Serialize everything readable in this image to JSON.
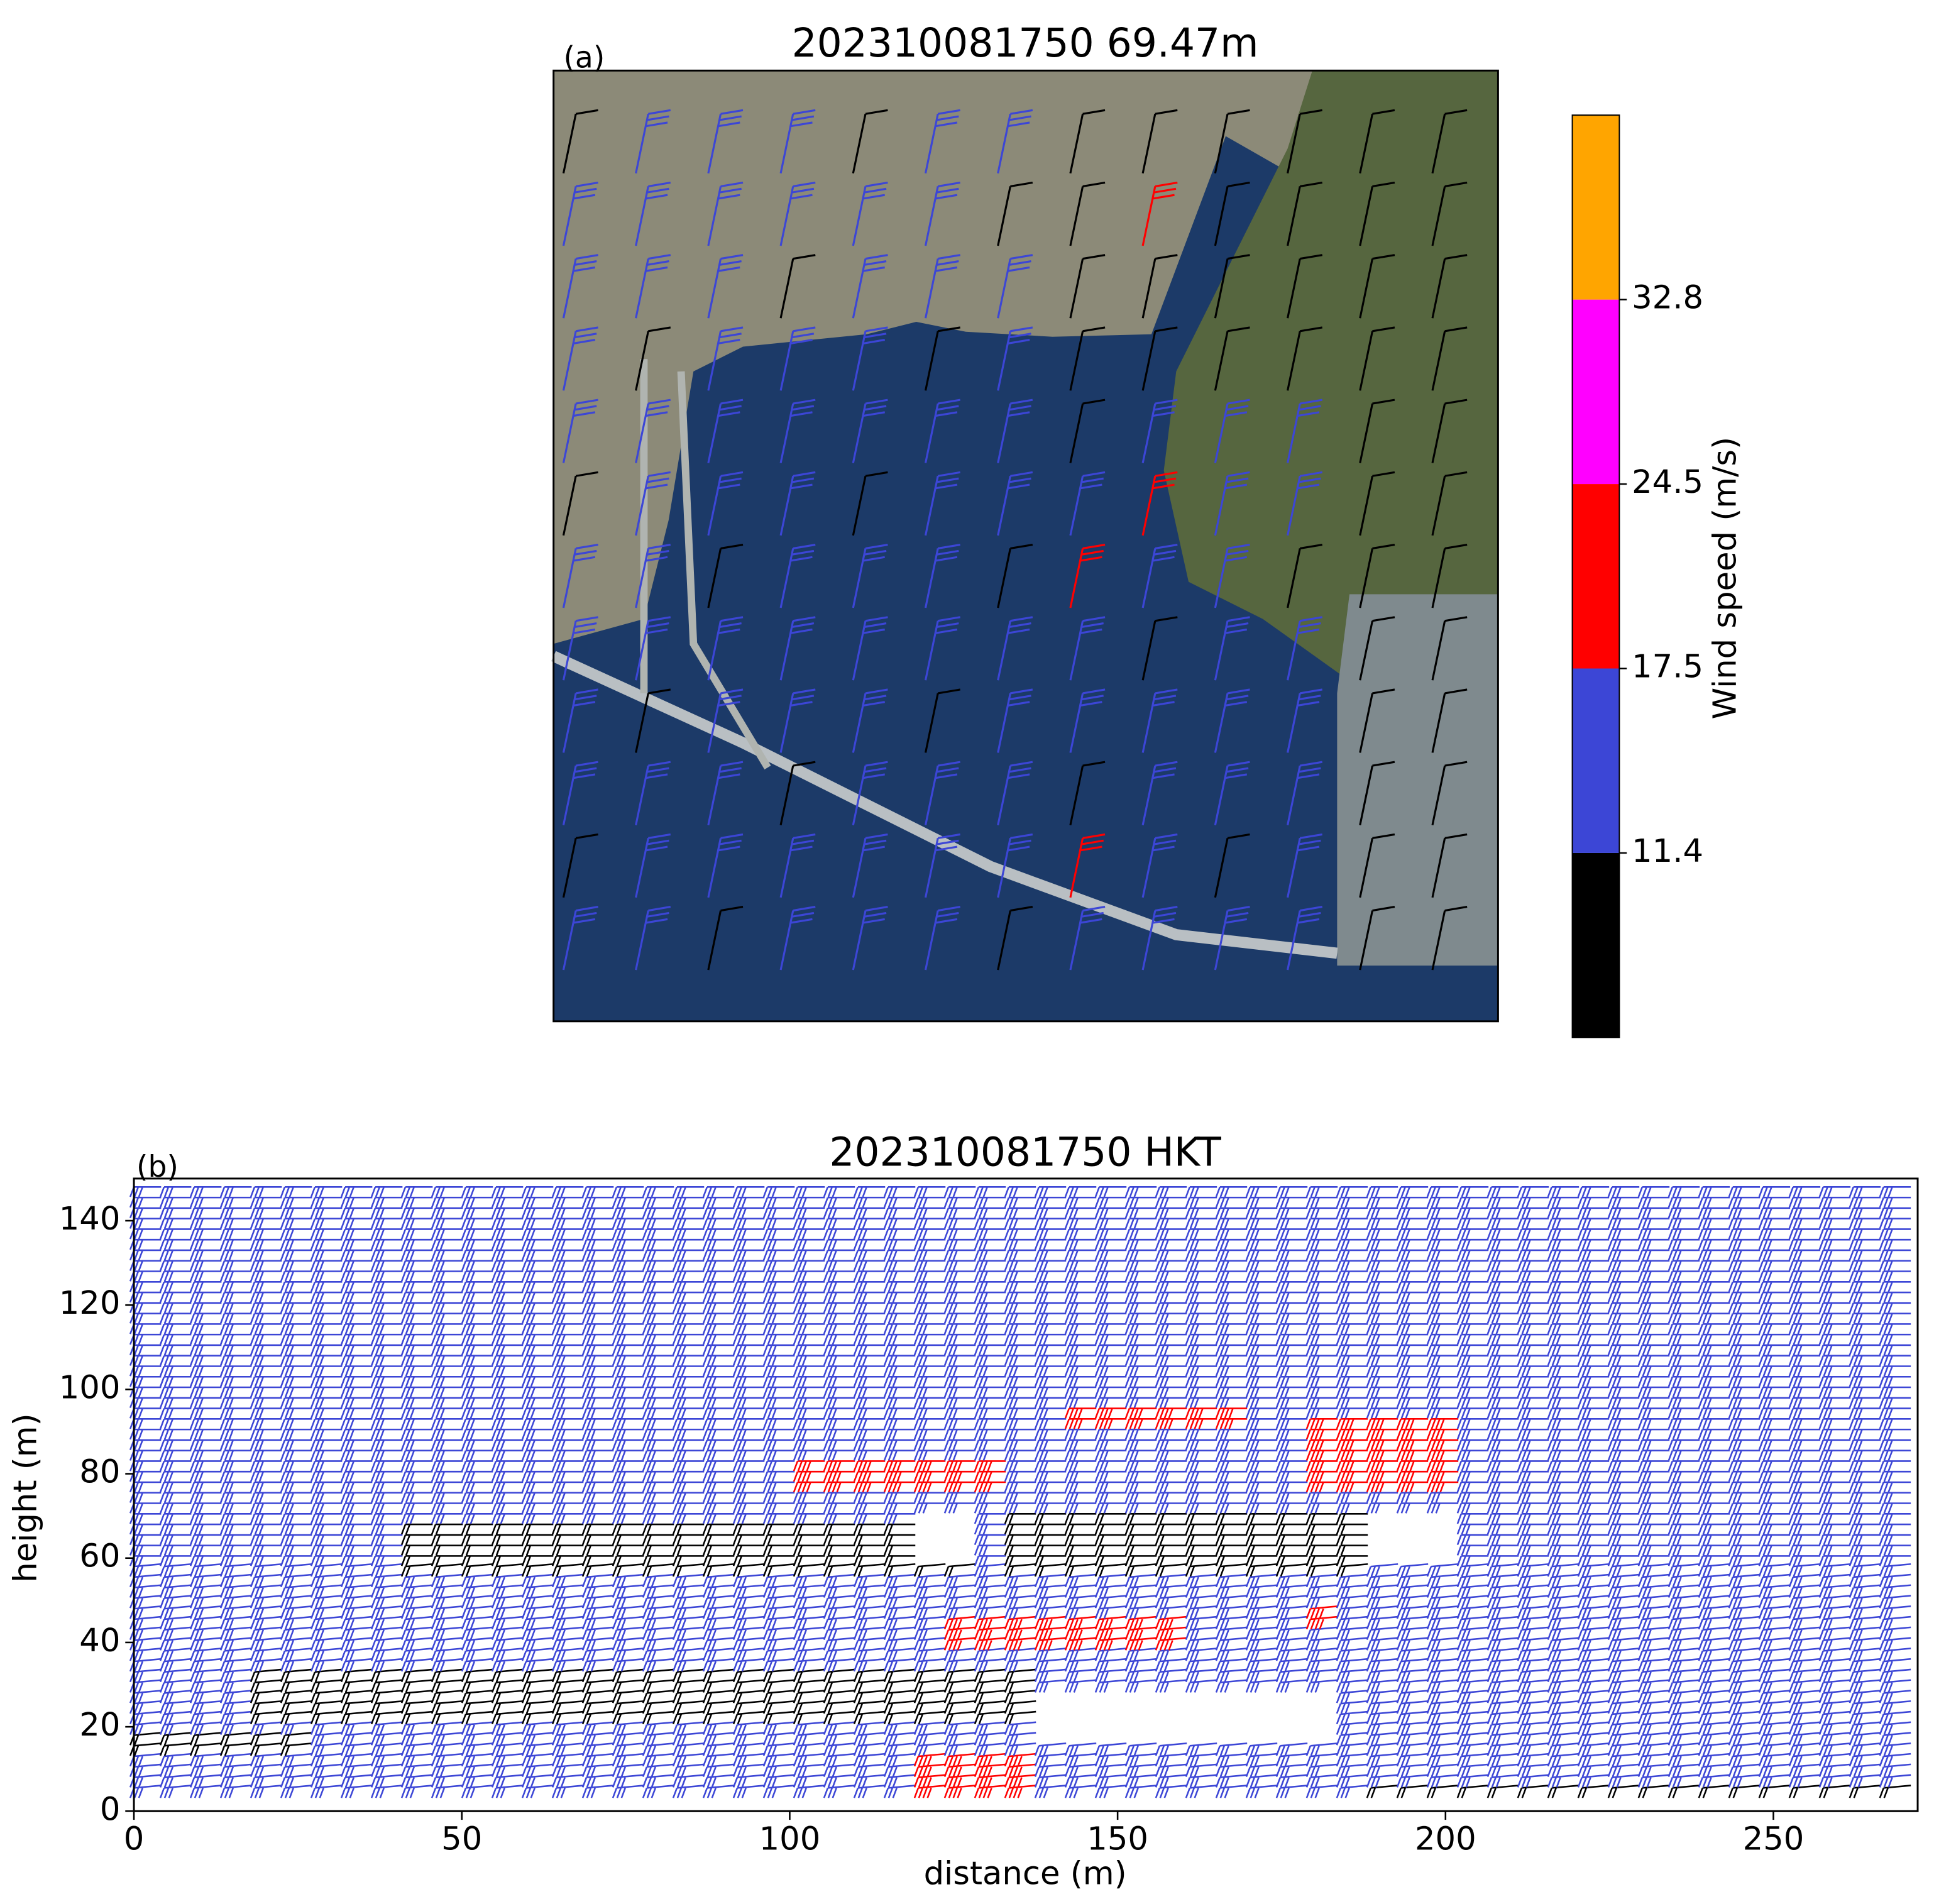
{
  "chart_data": [
    {
      "type": "barb-map",
      "label": "(a)",
      "title": "202310081750  69.47m",
      "colorbar": {
        "label": "Wind speed (m/s)",
        "colors": [
          "#000000",
          "#3c46d6",
          "#ff0000",
          "#ff00ff",
          "#ffa500"
        ],
        "ticks": [
          11.4,
          17.5,
          24.5,
          32.8
        ]
      }
    },
    {
      "type": "barb-section",
      "label": "(b)",
      "title": "202310081750 HKT",
      "xlabel": "distance (m)",
      "ylabel": "height (m)",
      "xlim": [
        0,
        272
      ],
      "ylim": [
        0,
        150
      ],
      "xticks": [
        0,
        50,
        100,
        150,
        200,
        250
      ],
      "yticks": [
        0,
        20,
        40,
        60,
        80,
        100,
        120,
        140
      ]
    }
  ]
}
